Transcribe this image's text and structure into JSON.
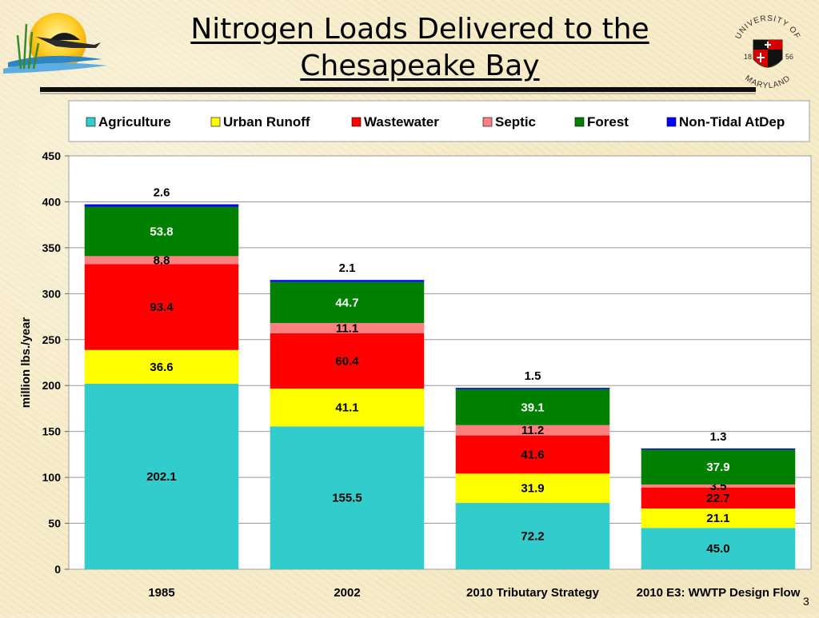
{
  "slide": {
    "title_line1": "Nitrogen Loads Delivered to the",
    "title_line2": "Chesapeake Bay",
    "page_number": "3"
  },
  "logo_right": {
    "top_text": "UNIVERSITY OF",
    "bottom_text": "MARYLAND",
    "year_left": "18",
    "year_right": "56"
  },
  "chart_data": {
    "type": "bar",
    "stacked": true,
    "title": "",
    "xlabel": "",
    "ylabel": "million lbs./year",
    "ylim": [
      0,
      450
    ],
    "yticks": [
      0,
      50,
      100,
      150,
      200,
      250,
      300,
      350,
      400,
      450
    ],
    "grid": true,
    "legend_position": "top",
    "categories": [
      "1985",
      "2002",
      "2010 Tributary Strategy",
      "2010 E3: WWTP Design Flow"
    ],
    "series": [
      {
        "name": "Agriculture",
        "color": "#33cccc",
        "values": [
          202.1,
          155.5,
          72.2,
          45.0
        ],
        "labels": [
          "202.1",
          "155.5",
          "72.2",
          "45.0"
        ],
        "label_color": "#000000"
      },
      {
        "name": "Urban Runoff",
        "color": "#ffff00",
        "values": [
          36.6,
          41.1,
          31.9,
          21.1
        ],
        "labels": [
          "36.6",
          "41.1",
          "31.9",
          "21.1"
        ],
        "label_color": "#000000"
      },
      {
        "name": "Wastewater",
        "color": "#ff0000",
        "values": [
          93.4,
          60.4,
          41.6,
          22.7
        ],
        "labels": [
          "93.4",
          "60.4",
          "41.6",
          "22.7"
        ],
        "label_color": "#000000"
      },
      {
        "name": "Septic",
        "color": "#ff8080",
        "values": [
          8.8,
          11.1,
          11.2,
          3.5
        ],
        "labels": [
          "8.8",
          "11.1",
          "11.2",
          "3.5"
        ],
        "label_color": "#000000"
      },
      {
        "name": "Forest",
        "color": "#008000",
        "values": [
          53.8,
          44.7,
          39.1,
          37.9
        ],
        "labels": [
          "53.8",
          "44.7",
          "39.1",
          "37.9"
        ],
        "label_color": "#ffffff"
      },
      {
        "name": "Non-Tidal AtDep",
        "color": "#0000ff",
        "values": [
          2.6,
          2.1,
          1.5,
          1.3
        ],
        "labels": [
          "2.6",
          "2.1",
          "1.5",
          "1.3"
        ],
        "label_color": "#000000"
      }
    ]
  }
}
